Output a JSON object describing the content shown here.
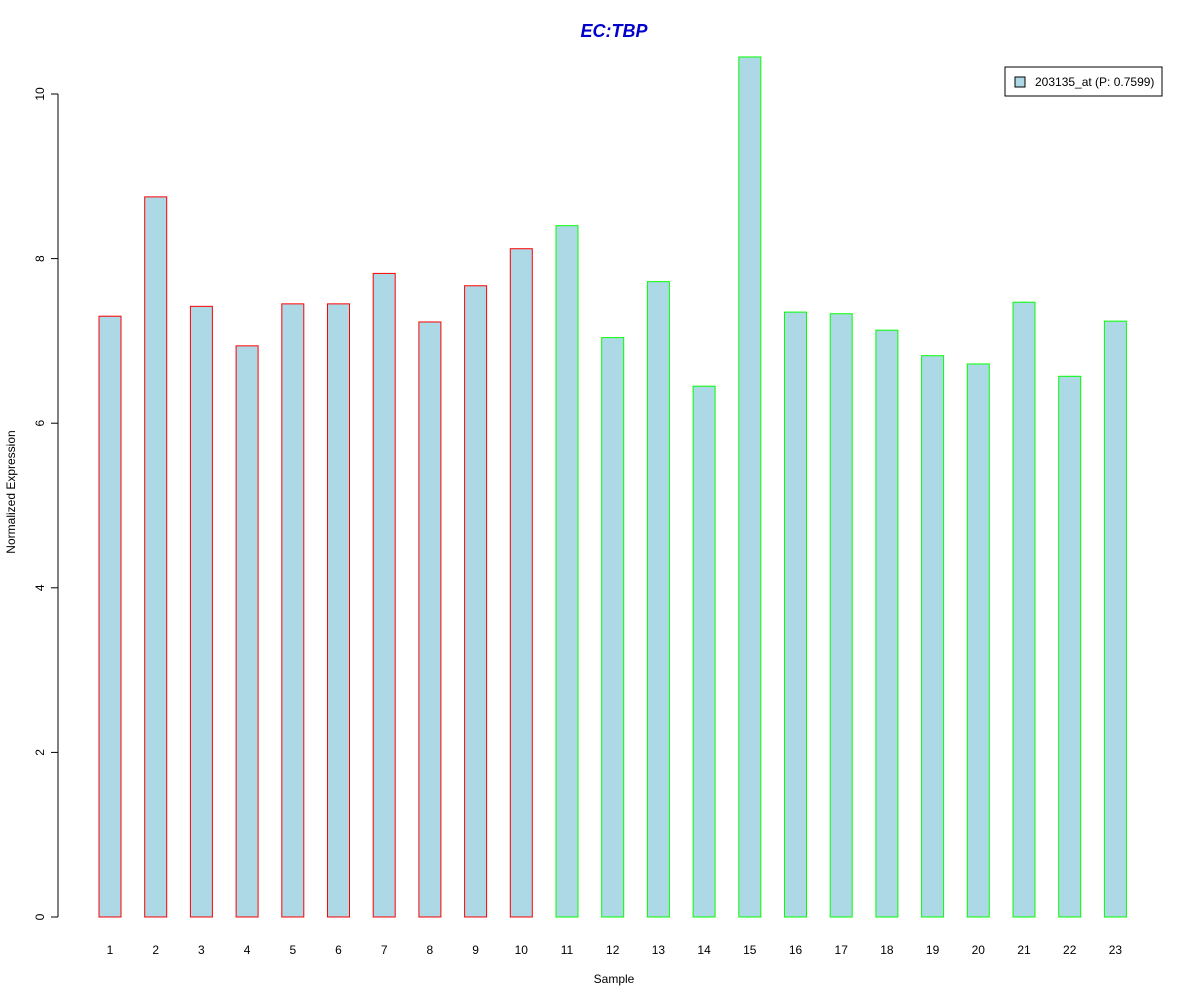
{
  "chart_data": {
    "type": "bar",
    "title": "EC:TBP",
    "xlabel": "Sample",
    "ylabel": "Normalized Expression",
    "categories": [
      "1",
      "2",
      "3",
      "4",
      "5",
      "6",
      "7",
      "8",
      "9",
      "10",
      "11",
      "12",
      "13",
      "14",
      "15",
      "16",
      "17",
      "18",
      "19",
      "20",
      "21",
      "22",
      "23"
    ],
    "series": [
      {
        "name": "203135_at (P: 0.7599)",
        "values": [
          7.3,
          8.75,
          7.42,
          6.94,
          7.45,
          7.45,
          7.82,
          7.23,
          7.67,
          8.12,
          8.4,
          7.04,
          7.72,
          6.45,
          10.45,
          7.35,
          7.33,
          7.13,
          6.82,
          6.72,
          7.47,
          6.57,
          7.24
        ]
      }
    ],
    "groups": [
      1,
      1,
      1,
      1,
      1,
      1,
      1,
      1,
      1,
      1,
      2,
      2,
      2,
      2,
      2,
      2,
      2,
      2,
      2,
      2,
      2,
      2,
      2
    ],
    "y_ticks": [
      0,
      2,
      4,
      6,
      8,
      10
    ],
    "ylim": [
      0,
      10.45
    ],
    "grid": false,
    "legend_position": "top-right"
  },
  "colors": {
    "title": "#0000cd",
    "bar_fill": "#add8e6",
    "group1_border": "#ff0000",
    "group2_border": "#00ff00",
    "axis": "#000000"
  }
}
